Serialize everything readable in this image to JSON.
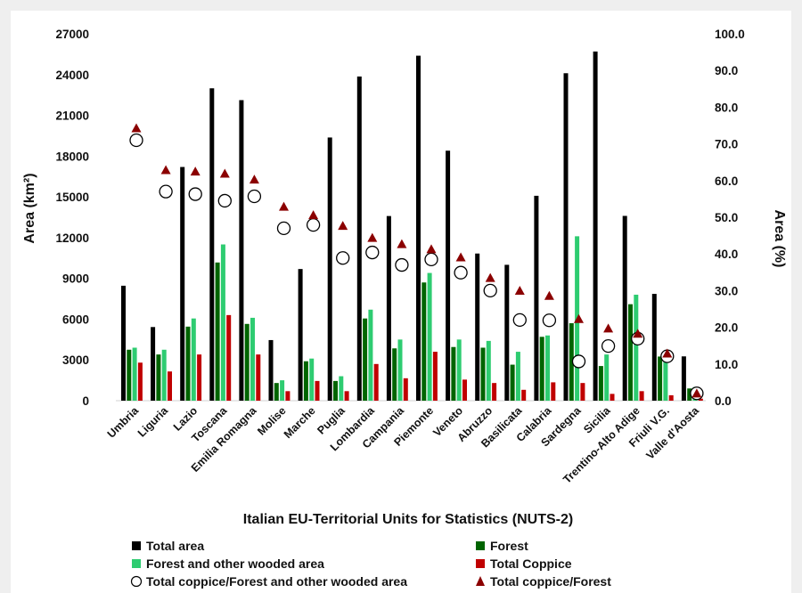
{
  "chart_data": {
    "type": "bar",
    "xlabel": "Italian EU-Territorial Units for Statistics (NUTS-2)",
    "ylabel": "Area (km²)",
    "y2label": "Area (%)",
    "ylim": [
      0,
      27000
    ],
    "yticks": [
      "27000",
      "24000",
      "21000",
      "18000",
      "15000",
      "12000",
      "9000",
      "6000",
      "3000",
      "0"
    ],
    "y2lim": [
      0,
      100
    ],
    "y2ticks": [
      "100.0",
      "90.0",
      "80.0",
      "70.0",
      "60.0",
      "50.0",
      "40.0",
      "30.0",
      "20.0",
      "10.0",
      "0.0"
    ],
    "grid": false,
    "legend_position": "bottom",
    "categories": [
      "Umbria",
      "Liguria",
      "Lazio",
      "Toscana",
      "Emilia Romagna",
      "Molise",
      "Marche",
      "Puglia",
      "Lombardia",
      "Campania",
      "Piemonte",
      "Veneto",
      "Abruzzo",
      "Basilicata",
      "Calabria",
      "Sardegna",
      "Sicilia",
      "Trentino-Alto Adige",
      "Friuli V.G.",
      "Valle d'Aosta"
    ],
    "series": [
      {
        "name": "Total area",
        "kind": "bar",
        "axis": "left",
        "color": "#000000",
        "values": [
          8460,
          5420,
          17200,
          22990,
          22120,
          4460,
          9690,
          19370,
          23860,
          13590,
          25390,
          18400,
          10830,
          10000,
          15080,
          24100,
          25700,
          13600,
          7860,
          3260
        ]
      },
      {
        "name": "Forest",
        "kind": "bar",
        "axis": "left",
        "color": "#006400",
        "values": [
          3750,
          3400,
          5450,
          10170,
          5650,
          1300,
          2900,
          1450,
          6050,
          3850,
          8700,
          3950,
          3900,
          2650,
          4700,
          5700,
          2550,
          7100,
          3250,
          900
        ]
      },
      {
        "name": "Forest and other wooded area",
        "kind": "bar",
        "axis": "left",
        "color": "#2ecc71",
        "values": [
          3900,
          3750,
          6050,
          11500,
          6100,
          1500,
          3100,
          1800,
          6700,
          4500,
          9400,
          4500,
          4400,
          3600,
          4800,
          12100,
          3400,
          7800,
          3200,
          1000
        ]
      },
      {
        "name": "Total Coppice",
        "kind": "bar",
        "axis": "left",
        "color": "#c00000",
        "values": [
          2800,
          2150,
          3400,
          6300,
          3400,
          700,
          1450,
          700,
          2700,
          1650,
          3600,
          1550,
          1300,
          800,
          1350,
          1300,
          500,
          700,
          400,
          150
        ]
      },
      {
        "name": "Total coppice/Forest and other wooded area",
        "kind": "circle",
        "axis": "right",
        "color": "#ffffff",
        "values": [
          71.0,
          57.0,
          56.3,
          54.5,
          55.7,
          47.0,
          47.9,
          38.9,
          40.4,
          37.0,
          38.5,
          34.9,
          30.0,
          22.0,
          21.9,
          10.7,
          14.9,
          16.9,
          12.1,
          2.0
        ]
      },
      {
        "name": "Total coppice/Forest",
        "kind": "triangle",
        "axis": "right",
        "color": "#8b0000",
        "values": [
          74.4,
          63.0,
          62.6,
          62.0,
          60.4,
          53.0,
          50.7,
          47.8,
          44.5,
          42.8,
          41.4,
          39.2,
          33.6,
          30.1,
          28.7,
          22.4,
          19.8,
          18.4,
          13.0,
          2.1
        ]
      }
    ]
  }
}
